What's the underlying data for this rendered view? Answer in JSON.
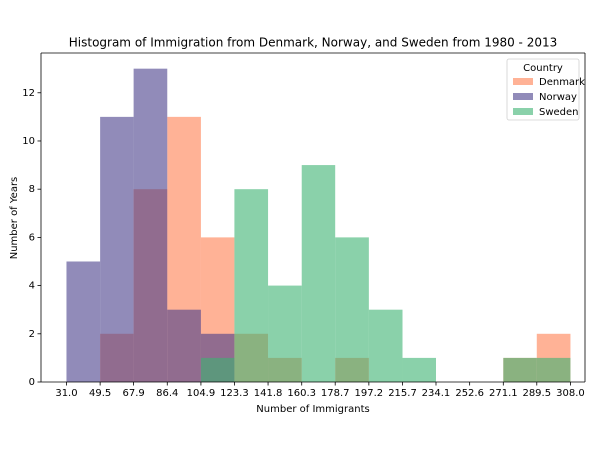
{
  "chart_data": {
    "type": "histogram",
    "title": "Histogram of Immigration from Denmark, Norway, and Sweden from 1980 - 2013",
    "x_label": "Number of Immigrants",
    "y_label": "Number of Years",
    "legend_title": "Country",
    "legend_position": "upper right",
    "bins": [
      31.0,
      49.5,
      67.9,
      86.4,
      104.9,
      123.3,
      141.8,
      160.3,
      178.7,
      197.2,
      215.7,
      234.1,
      252.6,
      271.1,
      289.5,
      308.0
    ],
    "series": [
      {
        "name": "Denmark",
        "color": "#ff7f50",
        "values": [
          0,
          2,
          8,
          11,
          6,
          2,
          1,
          0,
          1,
          0,
          0,
          0,
          0,
          1,
          2
        ]
      },
      {
        "name": "Norway",
        "color": "#483d8b",
        "values": [
          5,
          11,
          13,
          3,
          2,
          0,
          0,
          0,
          0,
          0,
          0,
          0,
          0,
          0,
          0
        ]
      },
      {
        "name": "Sweden",
        "color": "#3cb371",
        "values": [
          0,
          0,
          0,
          0,
          1,
          8,
          4,
          9,
          6,
          3,
          1,
          0,
          0,
          1,
          1
        ]
      }
    ],
    "xlim": [
      17,
      316
    ],
    "ylim": [
      0,
      13.65
    ],
    "xticks": [
      {
        "value": 31.0,
        "label": "31.0"
      },
      {
        "value": 49.5,
        "label": "49.5"
      },
      {
        "value": 67.9,
        "label": "67.9"
      },
      {
        "value": 86.4,
        "label": "86.4"
      },
      {
        "value": 104.9,
        "label": "104.9"
      },
      {
        "value": 123.3,
        "label": "123.3"
      },
      {
        "value": 141.8,
        "label": "141.8"
      },
      {
        "value": 160.3,
        "label": "160.3"
      },
      {
        "value": 178.7,
        "label": "178.7"
      },
      {
        "value": 197.2,
        "label": "197.2"
      },
      {
        "value": 215.7,
        "label": "215.7"
      },
      {
        "value": 234.1,
        "label": "234.1"
      },
      {
        "value": 252.6,
        "label": "252.6"
      },
      {
        "value": 271.1,
        "label": "271.1"
      },
      {
        "value": 289.5,
        "label": "289.5"
      },
      {
        "value": 308.0,
        "label": "308.0"
      }
    ],
    "yticks": [
      0,
      2,
      4,
      6,
      8,
      10,
      12
    ],
    "grid": false
  }
}
